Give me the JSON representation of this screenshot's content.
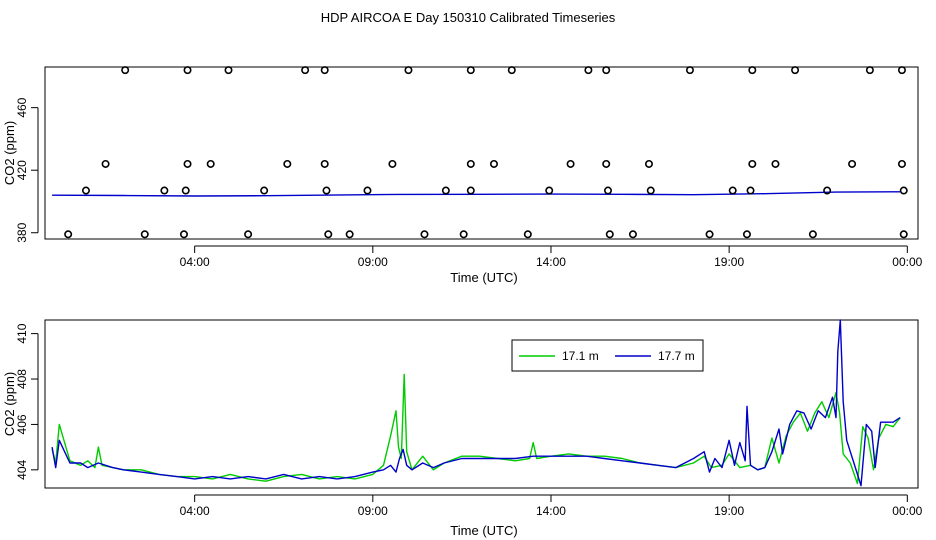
{
  "title": "HDP AIRCOA E  Day 150310  Calibrated Timeseries",
  "chart_data": [
    {
      "type": "scatter",
      "xlabel": "Time (UTC)",
      "ylabel": "CO2 (ppm)",
      "x_tick_labels": [
        "04:00",
        "09:00",
        "14:00",
        "19:00",
        "00:00"
      ],
      "x_tick_hours": [
        4,
        9,
        14,
        19,
        24
      ],
      "y_ticks": [
        380,
        420,
        460
      ],
      "xlim_hours": [
        -0.2,
        24.3
      ],
      "ylim": [
        376,
        486
      ],
      "line_series": [
        {
          "values": [
            [
              0,
              404
            ],
            [
              2,
              403.8
            ],
            [
              4,
              403.5
            ],
            [
              6,
              403.7
            ],
            [
              9.7,
              404.5
            ],
            [
              12,
              404.6
            ],
            [
              14,
              404.7
            ],
            [
              16,
              404.6
            ],
            [
              18,
              404.3
            ],
            [
              20,
              405
            ],
            [
              22,
              406
            ],
            [
              23.8,
              406.2
            ]
          ]
        }
      ],
      "circle_series": {
        "top": {
          "y": 484,
          "x": [
            2.05,
            3.8,
            4.95,
            7.1,
            7.65,
            10,
            11.75,
            12.9,
            15.05,
            15.55,
            17.9,
            19.65,
            20.85,
            22.95,
            23.85
          ]
        },
        "upper": {
          "y": 424,
          "x": [
            1.5,
            3.8,
            4.45,
            6.6,
            7.65,
            9.55,
            11.75,
            12.4,
            14.55,
            15.55,
            16.75,
            19.65,
            20.3,
            22.45,
            23.85
          ]
        },
        "middle": {
          "y": 407,
          "x": [
            0.95,
            3.15,
            3.75,
            5.95,
            7.7,
            8.85,
            11.05,
            11.75,
            13.95,
            15.6,
            16.8,
            19.1,
            19.6,
            21.75,
            23.9
          ]
        },
        "bottom": {
          "y": 379,
          "x": [
            0.45,
            2.6,
            3.7,
            5.5,
            7.75,
            8.35,
            10.45,
            11.55,
            13.35,
            15.65,
            16.3,
            18.45,
            19.5,
            21.35,
            23.9
          ]
        }
      }
    },
    {
      "type": "line",
      "xlabel": "Time (UTC)",
      "ylabel": "CO2 (ppm)",
      "x_tick_labels": [
        "04:00",
        "09:00",
        "14:00",
        "19:00",
        "00:00"
      ],
      "x_tick_hours": [
        4,
        9,
        14,
        19,
        24
      ],
      "y_ticks": [
        404,
        406,
        408,
        410
      ],
      "xlim_hours": [
        -0.2,
        24.3
      ],
      "ylim": [
        403.2,
        410.6
      ],
      "legend_position": "top-right",
      "series": [
        {
          "name": "17.1 m",
          "color": "#00cc00",
          "points": [
            [
              0,
              404.9
            ],
            [
              0.1,
              404.3
            ],
            [
              0.2,
              406
            ],
            [
              0.35,
              405.2
            ],
            [
              0.5,
              404.4
            ],
            [
              0.8,
              404.2
            ],
            [
              1,
              404.4
            ],
            [
              1.2,
              404.1
            ],
            [
              1.3,
              405
            ],
            [
              1.4,
              404.2
            ],
            [
              1.7,
              404.1
            ],
            [
              2,
              404
            ],
            [
              2.5,
              404
            ],
            [
              3,
              403.8
            ],
            [
              3.5,
              403.7
            ],
            [
              4,
              403.7
            ],
            [
              4.5,
              403.6
            ],
            [
              5,
              403.8
            ],
            [
              5.5,
              403.6
            ],
            [
              6,
              403.5
            ],
            [
              6.5,
              403.7
            ],
            [
              7,
              403.8
            ],
            [
              7.5,
              403.6
            ],
            [
              8,
              403.7
            ],
            [
              8.5,
              403.6
            ],
            [
              9,
              403.8
            ],
            [
              9.3,
              404.2
            ],
            [
              9.5,
              405.5
            ],
            [
              9.65,
              406.6
            ],
            [
              9.72,
              405
            ],
            [
              9.8,
              404.5
            ],
            [
              9.88,
              408.2
            ],
            [
              9.95,
              404.8
            ],
            [
              10.1,
              404
            ],
            [
              10.4,
              404.6
            ],
            [
              10.7,
              404
            ],
            [
              11,
              404.3
            ],
            [
              11.5,
              404.6
            ],
            [
              12,
              404.6
            ],
            [
              12.5,
              404.5
            ],
            [
              13,
              404.4
            ],
            [
              13.4,
              404.5
            ],
            [
              13.5,
              405.2
            ],
            [
              13.6,
              404.5
            ],
            [
              14,
              404.6
            ],
            [
              14.5,
              404.7
            ],
            [
              15,
              404.6
            ],
            [
              15.5,
              404.6
            ],
            [
              16,
              404.5
            ],
            [
              16.5,
              404.3
            ],
            [
              17,
              404.2
            ],
            [
              17.5,
              404.1
            ],
            [
              18,
              404.3
            ],
            [
              18.3,
              404.6
            ],
            [
              18.5,
              404.1
            ],
            [
              18.8,
              404.2
            ],
            [
              19,
              404.7
            ],
            [
              19.3,
              404.1
            ],
            [
              19.6,
              404.2
            ],
            [
              19.8,
              404
            ],
            [
              20,
              404.1
            ],
            [
              20.2,
              405.4
            ],
            [
              20.4,
              404.3
            ],
            [
              20.6,
              405.5
            ],
            [
              20.8,
              406.1
            ],
            [
              21,
              406.5
            ],
            [
              21.2,
              405.7
            ],
            [
              21.4,
              406.5
            ],
            [
              21.6,
              407
            ],
            [
              21.8,
              406.3
            ],
            [
              22,
              407.4
            ],
            [
              22.1,
              406.5
            ],
            [
              22.2,
              404.7
            ],
            [
              22.4,
              404.3
            ],
            [
              22.6,
              403.4
            ],
            [
              22.75,
              405.9
            ],
            [
              22.9,
              405.4
            ],
            [
              23.05,
              404
            ],
            [
              23.2,
              405.4
            ],
            [
              23.4,
              406
            ],
            [
              23.6,
              405.9
            ],
            [
              23.8,
              406.3
            ]
          ]
        },
        {
          "name": "17.7 m",
          "color": "#0000cc",
          "points": [
            [
              0,
              405
            ],
            [
              0.1,
              404.1
            ],
            [
              0.2,
              405.3
            ],
            [
              0.35,
              404.8
            ],
            [
              0.5,
              404.3
            ],
            [
              0.8,
              404.3
            ],
            [
              1,
              404.1
            ],
            [
              1.3,
              404.3
            ],
            [
              1.7,
              404.1
            ],
            [
              2,
              404
            ],
            [
              2.5,
              403.9
            ],
            [
              3,
              403.8
            ],
            [
              3.5,
              403.7
            ],
            [
              4,
              403.6
            ],
            [
              4.5,
              403.7
            ],
            [
              5,
              403.6
            ],
            [
              5.5,
              403.7
            ],
            [
              6,
              403.6
            ],
            [
              6.5,
              403.8
            ],
            [
              7,
              403.6
            ],
            [
              7.5,
              403.7
            ],
            [
              8,
              403.6
            ],
            [
              8.5,
              403.7
            ],
            [
              9,
              403.9
            ],
            [
              9.3,
              404
            ],
            [
              9.5,
              404.2
            ],
            [
              9.65,
              403.9
            ],
            [
              9.75,
              404.5
            ],
            [
              9.85,
              404.9
            ],
            [
              9.95,
              404.2
            ],
            [
              10.1,
              404
            ],
            [
              10.4,
              404.3
            ],
            [
              10.7,
              404.1
            ],
            [
              11,
              404.3
            ],
            [
              11.5,
              404.5
            ],
            [
              12,
              404.5
            ],
            [
              12.5,
              404.5
            ],
            [
              13,
              404.5
            ],
            [
              13.5,
              404.6
            ],
            [
              14,
              404.6
            ],
            [
              14.5,
              404.6
            ],
            [
              15,
              404.6
            ],
            [
              15.5,
              404.5
            ],
            [
              16,
              404.4
            ],
            [
              16.5,
              404.3
            ],
            [
              17,
              404.2
            ],
            [
              17.5,
              404.1
            ],
            [
              18,
              404.5
            ],
            [
              18.3,
              404.8
            ],
            [
              18.45,
              403.9
            ],
            [
              18.6,
              404.5
            ],
            [
              18.8,
              404.1
            ],
            [
              19,
              405.3
            ],
            [
              19.15,
              404.2
            ],
            [
              19.3,
              405.2
            ],
            [
              19.45,
              404.4
            ],
            [
              19.5,
              406.8
            ],
            [
              19.6,
              404.2
            ],
            [
              19.8,
              404
            ],
            [
              20,
              404.1
            ],
            [
              20.2,
              404.8
            ],
            [
              20.4,
              405.8
            ],
            [
              20.5,
              404.7
            ],
            [
              20.7,
              406
            ],
            [
              20.9,
              406.6
            ],
            [
              21.1,
              406.5
            ],
            [
              21.3,
              405.8
            ],
            [
              21.5,
              406.6
            ],
            [
              21.7,
              406.3
            ],
            [
              21.9,
              407.2
            ],
            [
              22,
              406.3
            ],
            [
              22.05,
              409.2
            ],
            [
              22.12,
              410.6
            ],
            [
              22.2,
              407
            ],
            [
              22.3,
              405.3
            ],
            [
              22.5,
              404.3
            ],
            [
              22.7,
              403.3
            ],
            [
              22.85,
              406
            ],
            [
              23,
              405.7
            ],
            [
              23.1,
              404.1
            ],
            [
              23.25,
              406.1
            ],
            [
              23.4,
              406.1
            ],
            [
              23.6,
              406.1
            ],
            [
              23.8,
              406.3
            ]
          ]
        }
      ]
    }
  ]
}
